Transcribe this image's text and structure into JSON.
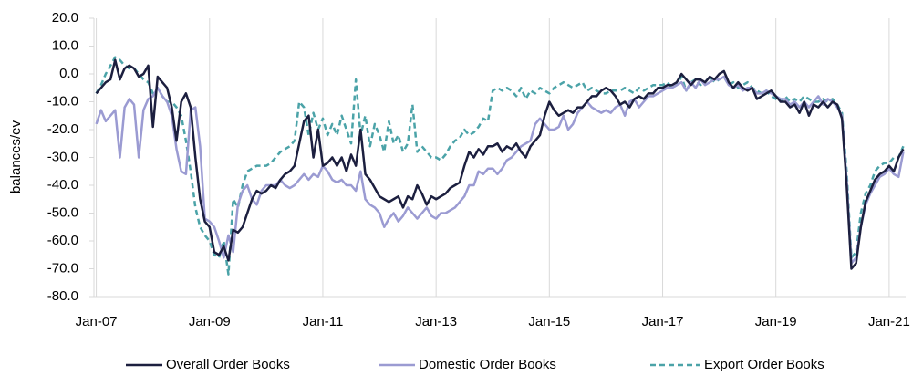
{
  "chart_data": {
    "type": "line",
    "y_label": "balances/ev",
    "categories": [
      "Jan-07",
      null,
      null,
      null,
      null,
      null,
      null,
      null,
      null,
      null,
      null,
      null,
      null,
      null,
      null,
      null,
      null,
      null,
      null,
      null,
      null,
      null,
      null,
      null,
      "Jan-09",
      null,
      null,
      null,
      null,
      null,
      null,
      null,
      null,
      null,
      null,
      null,
      null,
      null,
      null,
      null,
      null,
      null,
      null,
      null,
      null,
      null,
      null,
      null,
      "Jan-11",
      null,
      null,
      null,
      null,
      null,
      null,
      null,
      null,
      null,
      null,
      null,
      null,
      null,
      null,
      null,
      null,
      null,
      null,
      null,
      null,
      null,
      null,
      null,
      "Jan-13",
      null,
      null,
      null,
      null,
      null,
      null,
      null,
      null,
      null,
      null,
      null,
      null,
      null,
      null,
      null,
      null,
      null,
      null,
      null,
      null,
      null,
      null,
      null,
      "Jan-15",
      null,
      null,
      null,
      null,
      null,
      null,
      null,
      null,
      null,
      null,
      null,
      null,
      null,
      null,
      null,
      null,
      null,
      null,
      null,
      null,
      null,
      null,
      null,
      "Jan-17",
      null,
      null,
      null,
      null,
      null,
      null,
      null,
      null,
      null,
      null,
      null,
      null,
      null,
      null,
      null,
      null,
      null,
      null,
      null,
      null,
      null,
      null,
      null,
      "Jan-19",
      null,
      null,
      null,
      null,
      null,
      null,
      null,
      null,
      null,
      null,
      null,
      null,
      null,
      null,
      null,
      null,
      null,
      null,
      null,
      null,
      null,
      null,
      null,
      "Jan-21",
      null,
      null,
      null
    ],
    "series": [
      {
        "name": "Overall Order Books",
        "color": "#1c1f3f",
        "dashed": false,
        "values": [
          -7,
          -5,
          -3,
          -2,
          5,
          -2,
          2,
          3,
          2,
          -1,
          0,
          3,
          -19,
          -1,
          -3,
          -5,
          -12,
          -24,
          -10,
          -7,
          -12,
          -30,
          -45,
          -53,
          -55,
          -64,
          -65,
          -62,
          -67,
          -56,
          -57,
          -55,
          -50,
          -45,
          -42,
          -43,
          -42,
          -40,
          -41,
          -38,
          -36,
          -35,
          -33,
          -25,
          -17,
          -15,
          -30,
          -20,
          -33,
          -32,
          -30,
          -33,
          -30,
          -35,
          -29,
          -33,
          -20,
          -36,
          -38,
          -41,
          -44,
          -45,
          -46,
          -45,
          -44,
          -48,
          -44,
          -45,
          -40,
          -43,
          -47,
          -44,
          -45,
          -44,
          -43,
          -41,
          -40,
          -39,
          -33,
          -28,
          -30,
          -27,
          -29,
          -26,
          -26,
          -25,
          -28,
          -26,
          -27,
          -25,
          -28,
          -30,
          -26,
          -24,
          -22,
          -15,
          -10,
          -13,
          -15,
          -14,
          -13,
          -14,
          -12,
          -12,
          -10,
          -8,
          -8,
          -6,
          -5,
          -6,
          -8,
          -11,
          -10,
          -12,
          -9,
          -8,
          -9,
          -7,
          -7,
          -5,
          -5,
          -4,
          -4,
          -3,
          0,
          -2,
          -4,
          -2,
          -2,
          -3,
          -1,
          -2,
          0,
          1,
          -3,
          -5,
          -3,
          -5,
          -6,
          -5,
          -9,
          -8,
          -7,
          -6,
          -8,
          -10,
          -10,
          -12,
          -11,
          -14,
          -10,
          -15,
          -11,
          -12,
          -10,
          -12,
          -10,
          -11,
          -16,
          -40,
          -70,
          -68,
          -55,
          -46,
          -42,
          -38,
          -36,
          -35,
          -33,
          -35,
          -30,
          -27
        ]
      },
      {
        "name": "Domestic Order Books",
        "color": "#9b9bd2",
        "dashed": false,
        "values": [
          -18,
          -13,
          -17,
          -15,
          -13,
          -30,
          -12,
          -9,
          -11,
          -30,
          -13,
          -9,
          -8,
          -5,
          -8,
          -10,
          -15,
          -27,
          -35,
          -36,
          -13,
          -12,
          -26,
          -52,
          -53,
          -55,
          -60,
          -66,
          -58,
          -64,
          -47,
          -42,
          -40,
          -45,
          -47,
          -42,
          -40,
          -40,
          -40,
          -38,
          -40,
          -41,
          -40,
          -38,
          -36,
          -38,
          -36,
          -37,
          -33,
          -35,
          -38,
          -39,
          -38,
          -40,
          -40,
          -42,
          -35,
          -45,
          -47,
          -48,
          -50,
          -55,
          -52,
          -50,
          -53,
          -51,
          -48,
          -50,
          -52,
          -50,
          -48,
          -51,
          -52,
          -50,
          -50,
          -49,
          -48,
          -46,
          -44,
          -40,
          -40,
          -35,
          -36,
          -34,
          -34,
          -36,
          -34,
          -31,
          -30,
          -28,
          -26,
          -25,
          -24,
          -18,
          -16,
          -18,
          -20,
          -20,
          -19,
          -15,
          -20,
          -18,
          -14,
          -12,
          -10,
          -12,
          -13,
          -14,
          -13,
          -14,
          -12,
          -11,
          -15,
          -10,
          -9,
          -12,
          -10,
          -8,
          -8,
          -7,
          -6,
          -5,
          -5,
          -4,
          -3,
          -6,
          -3,
          -5,
          -2,
          -4,
          -3,
          -2,
          -2,
          -1,
          -4,
          -5,
          -4,
          -6,
          -5,
          -5,
          -7,
          -7,
          -6,
          -7,
          -8,
          -9,
          -9,
          -11,
          -10,
          -12,
          -10,
          -12,
          -10,
          -8,
          -11,
          -9,
          -10,
          -12,
          -15,
          -38,
          -68,
          -66,
          -55,
          -47,
          -43,
          -40,
          -37,
          -36,
          -34,
          -36,
          -37,
          -28
        ]
      },
      {
        "name": "Export Order Books",
        "color": "#4ba3a8",
        "dashed": true,
        "values": [
          -7,
          -4,
          0,
          3,
          6,
          5,
          3,
          2,
          2,
          0,
          -2,
          -3,
          -7,
          -5,
          -8,
          -10,
          -10,
          -12,
          -15,
          -24,
          -35,
          -48,
          -55,
          -58,
          -60,
          -65,
          -66,
          -60,
          -72,
          -45,
          -48,
          -40,
          -35,
          -34,
          -33,
          -33,
          -33,
          -32,
          -30,
          -28,
          -27,
          -26,
          -24,
          -10,
          -12,
          -22,
          -14,
          -20,
          -16,
          -22,
          -18,
          -22,
          -15,
          -20,
          -25,
          -2,
          -22,
          -15,
          -26,
          -18,
          -22,
          -28,
          -17,
          -25,
          -22,
          -28,
          -25,
          -11,
          -28,
          -26,
          -28,
          -30,
          -30,
          -31,
          -29,
          -26,
          -24,
          -23,
          -20,
          -22,
          -21,
          -19,
          -16,
          -17,
          -6,
          -5,
          -6,
          -5,
          -6,
          -8,
          -5,
          -9,
          -6,
          -7,
          -5,
          -6,
          -7,
          -5,
          -4,
          -3,
          -4,
          -5,
          -4,
          -3,
          -6,
          -5,
          -6,
          -7,
          -7,
          -6,
          -6,
          -6,
          -5,
          -6,
          -7,
          -5,
          -6,
          -5,
          -4,
          -4,
          -4,
          -3,
          -5,
          -4,
          -1,
          -6,
          -3,
          -2,
          -4,
          -3,
          -1,
          -3,
          -2,
          -1,
          -4,
          -3,
          -5,
          -4,
          -3,
          -5,
          -6,
          -7,
          -6,
          -8,
          -9,
          -10,
          -8,
          -10,
          -9,
          -10,
          -8,
          -9,
          -10,
          -10,
          -9,
          -10,
          -9,
          -11,
          -14,
          -35,
          -66,
          -64,
          -50,
          -43,
          -40,
          -35,
          -33,
          -32,
          -32,
          -30,
          -30,
          -26
        ]
      }
    ],
    "ylim": [
      -80,
      20
    ],
    "yticks": [
      {
        "value": 20,
        "label": "20.0"
      },
      {
        "value": 10,
        "label": "10.0"
      },
      {
        "value": 0,
        "label": "0.0"
      },
      {
        "value": -10,
        "label": "-10.0"
      },
      {
        "value": -20,
        "label": "-20.0"
      },
      {
        "value": -30,
        "label": "-30.0"
      },
      {
        "value": -40,
        "label": "-40.0"
      },
      {
        "value": -50,
        "label": "-50.0"
      },
      {
        "value": -60,
        "label": "-60.0"
      },
      {
        "value": -70,
        "label": "-70.0"
      },
      {
        "value": -80,
        "label": "-80.0"
      }
    ],
    "legend": "bottom"
  }
}
